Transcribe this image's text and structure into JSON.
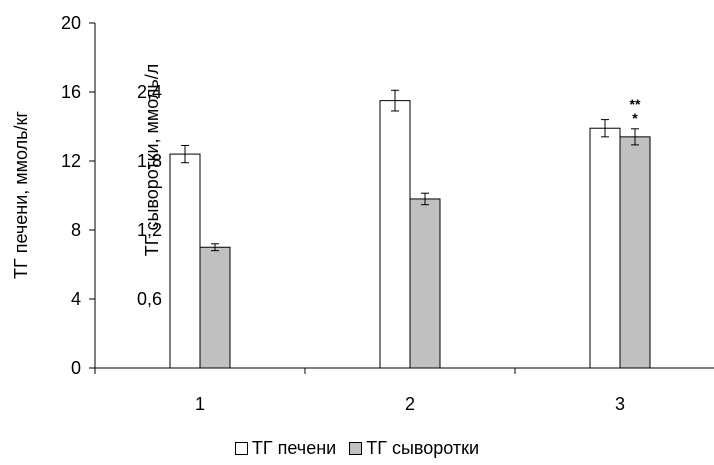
{
  "chart_data": {
    "type": "bar",
    "title": "",
    "categories": [
      "1",
      "2",
      "3"
    ],
    "series": [
      {
        "name": "ТГ печени",
        "values": [
          12.4,
          15.5,
          13.9
        ],
        "errors": [
          0.5,
          0.6,
          0.5
        ],
        "color": "#ffffff"
      },
      {
        "name": "ТГ сыворотки",
        "values": [
          1.05,
          1.47,
          2.01
        ],
        "errors": [
          0.03,
          0.05,
          0.07
        ],
        "color": "#c0c0c0"
      }
    ],
    "y_axis_primary": {
      "label": "ТГ печени, ммоль/кг",
      "range": [
        0,
        20
      ],
      "ticks": [
        "0",
        "4",
        "8",
        "12",
        "16",
        "20"
      ]
    },
    "y_axis_secondary": {
      "label": "ТГ сыворотки, ммоль/л",
      "range": [
        0,
        3.0
      ],
      "ticks": [
        "0,6",
        "1,2",
        "1,8",
        "2,4"
      ]
    },
    "annotations": [
      {
        "category": "3",
        "series": "ТГ сыворотки",
        "lines": [
          "**",
          "*"
        ]
      }
    ],
    "grid": false,
    "legend_position": "bottom"
  }
}
